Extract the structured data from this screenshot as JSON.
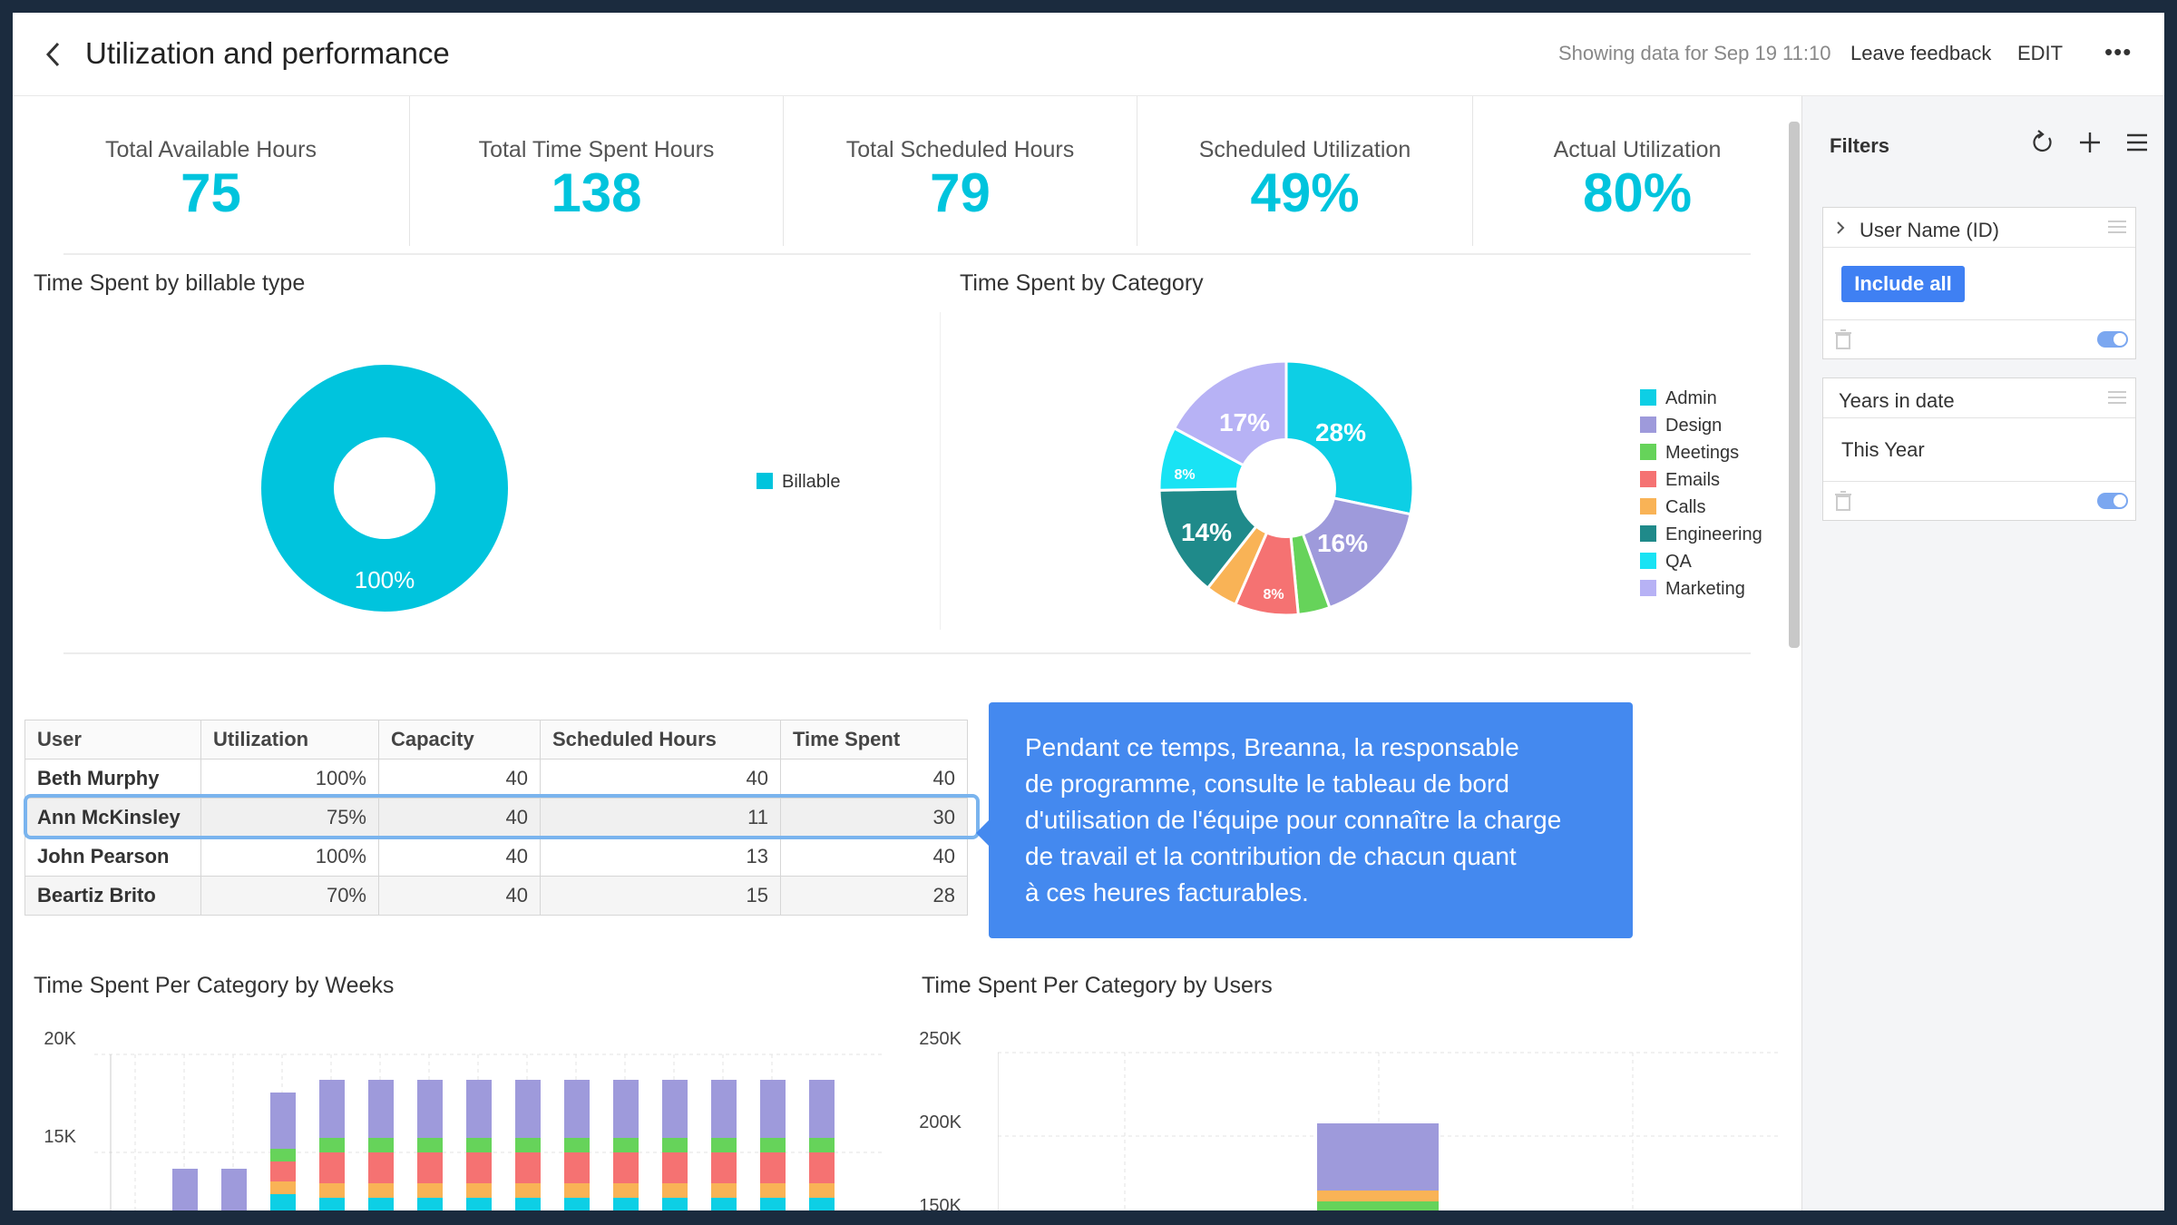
{
  "header": {
    "title": "Utilization and performance",
    "showing": "Showing data for Sep 19 11:10",
    "leave_feedback": "Leave feedback",
    "edit": "EDIT",
    "more": "•••"
  },
  "kpis": [
    {
      "label": "Total Available Hours",
      "value": "75"
    },
    {
      "label": "Total Time Spent Hours",
      "value": "138"
    },
    {
      "label": "Total Scheduled Hours",
      "value": "79"
    },
    {
      "label": "Scheduled Utilization",
      "value": "49%"
    },
    {
      "label": "Actual Utilization",
      "value": "80%"
    }
  ],
  "billable_chart": {
    "title": "Time Spent by billable type",
    "slice_label": "100%",
    "legend": "Billable"
  },
  "category_chart": {
    "title": "Time Spent by Category",
    "slice_labels": [
      "28%",
      "16%",
      "8%",
      "14%",
      "8%",
      "17%"
    ],
    "legend": [
      "Admin",
      "Design",
      "Meetings",
      "Emails",
      "Calls",
      "Engineering",
      "QA",
      "Marketing"
    ]
  },
  "table": {
    "headers": [
      "User",
      "Utilization",
      "Capacity",
      "Scheduled Hours",
      "Time Spent"
    ],
    "rows": [
      [
        "Beth Murphy",
        "100%",
        "40",
        "40",
        "40"
      ],
      [
        "Ann McKinsley",
        "75%",
        "40",
        "11",
        "30"
      ],
      [
        "John Pearson",
        "100%",
        "40",
        "13",
        "40"
      ],
      [
        "Beartiz Brito",
        "70%",
        "40",
        "15",
        "28"
      ]
    ]
  },
  "callout": {
    "lines": [
      "Pendant ce temps, Breanna, la responsable",
      "de programme, consulte le tableau de bord",
      "d'utilisation de l'équipe pour connaître la charge",
      "de travail et la contribution de chacun quant",
      "à ces heures facturables."
    ]
  },
  "weeks_chart": {
    "title": "Time Spent Per Category by Weeks",
    "y_ticks": [
      "20K",
      "15K"
    ]
  },
  "users_chart": {
    "title": "Time Spent Per Category by Users",
    "y_ticks": [
      "250K",
      "200K",
      "150K"
    ]
  },
  "filters": {
    "title": "Filters",
    "cards": [
      {
        "title": "User Name (ID)",
        "value": "Include all"
      },
      {
        "title": "Years in date",
        "value": "This Year"
      }
    ]
  },
  "chart_data": [
    {
      "type": "pie",
      "title": "Time Spent by billable type",
      "categories": [
        "Billable"
      ],
      "values": [
        100
      ]
    },
    {
      "type": "pie",
      "title": "Time Spent by Category",
      "categories": [
        "Admin",
        "Design",
        "Meetings",
        "Emails",
        "Calls",
        "Engineering",
        "QA",
        "Marketing"
      ],
      "values": [
        28,
        16,
        4,
        8,
        4,
        14,
        8,
        17
      ]
    }
  ],
  "colors": {
    "accent": "#00c4dd",
    "admin": "#0dcfe5",
    "design": "#9e9adb",
    "meetings": "#66d35a",
    "emails": "#f57272",
    "calls": "#f9b356",
    "engineering": "#1f8a8a",
    "qa": "#19e3f4",
    "marketing": "#b7b2f5",
    "callout": "#4489ef"
  }
}
